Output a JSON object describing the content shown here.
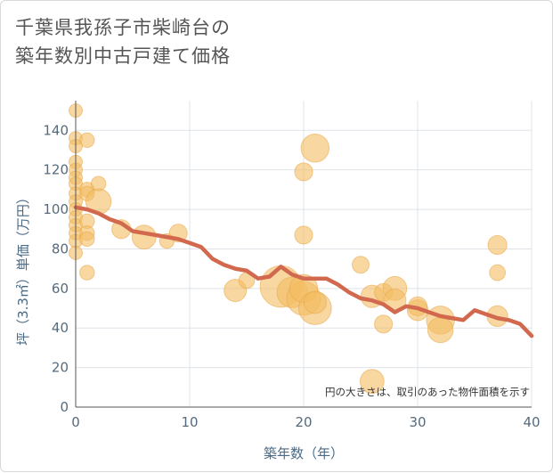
{
  "chart_data": {
    "type": "scatter",
    "title_lines": [
      "千葉県我孫子市柴崎台の",
      "築年数別中古戸建て価格"
    ],
    "xlabel": "築年数（年）",
    "ylabel": "坪（3.3㎡）単価（万円）",
    "xlim": [
      0,
      40
    ],
    "ylim": [
      0,
      155
    ],
    "xticks": [
      "0",
      "10",
      "20",
      "30",
      "40"
    ],
    "yticks": [
      "0",
      "20",
      "40",
      "60",
      "80",
      "100",
      "120",
      "140"
    ],
    "note": "円の大きさは、取引のあった物件面積を示す",
    "grid": true,
    "colors": {
      "bubble": "#f3bd63",
      "line": "#d2694f"
    },
    "bubbles": [
      {
        "x": 0,
        "y": 150,
        "size": 0.25
      },
      {
        "x": 0,
        "y": 136,
        "size": 0.25
      },
      {
        "x": 0,
        "y": 132,
        "size": 0.25
      },
      {
        "x": 0,
        "y": 124,
        "size": 0.25
      },
      {
        "x": 0,
        "y": 120,
        "size": 0.25
      },
      {
        "x": 0,
        "y": 116,
        "size": 0.25
      },
      {
        "x": 0,
        "y": 113,
        "size": 0.25
      },
      {
        "x": 0,
        "y": 108,
        "size": 0.25
      },
      {
        "x": 0,
        "y": 104,
        "size": 0.25
      },
      {
        "x": 0,
        "y": 100,
        "size": 0.25
      },
      {
        "x": 0,
        "y": 96,
        "size": 0.25
      },
      {
        "x": 0,
        "y": 92,
        "size": 0.25
      },
      {
        "x": 0,
        "y": 88,
        "size": 0.25
      },
      {
        "x": 0,
        "y": 84,
        "size": 0.25
      },
      {
        "x": 0,
        "y": 78,
        "size": 0.25
      },
      {
        "x": 1,
        "y": 135,
        "size": 0.3
      },
      {
        "x": 1,
        "y": 110,
        "size": 0.3
      },
      {
        "x": 1,
        "y": 108,
        "size": 0.3
      },
      {
        "x": 1,
        "y": 94,
        "size": 0.3
      },
      {
        "x": 1,
        "y": 88,
        "size": 0.3
      },
      {
        "x": 1,
        "y": 85,
        "size": 0.3
      },
      {
        "x": 1,
        "y": 68,
        "size": 0.3
      },
      {
        "x": 2,
        "y": 113,
        "size": 0.3
      },
      {
        "x": 2,
        "y": 104,
        "size": 0.9
      },
      {
        "x": 4,
        "y": 90,
        "size": 0.5
      },
      {
        "x": 6,
        "y": 86,
        "size": 0.8
      },
      {
        "x": 8,
        "y": 84,
        "size": 0.3
      },
      {
        "x": 9,
        "y": 88,
        "size": 0.45
      },
      {
        "x": 14,
        "y": 59,
        "size": 0.7
      },
      {
        "x": 15,
        "y": 64,
        "size": 0.35
      },
      {
        "x": 18,
        "y": 61,
        "size": 2.4
      },
      {
        "x": 19,
        "y": 58,
        "size": 1.3
      },
      {
        "x": 20,
        "y": 119,
        "size": 0.45
      },
      {
        "x": 20,
        "y": 87,
        "size": 0.45
      },
      {
        "x": 20,
        "y": 55,
        "size": 1.6
      },
      {
        "x": 20,
        "y": 60,
        "size": 1.1
      },
      {
        "x": 21,
        "y": 131,
        "size": 1.1
      },
      {
        "x": 21,
        "y": 50,
        "size": 1.5
      },
      {
        "x": 21,
        "y": 53,
        "size": 0.7
      },
      {
        "x": 25,
        "y": 72,
        "size": 0.4
      },
      {
        "x": 26,
        "y": 56,
        "size": 0.7
      },
      {
        "x": 26,
        "y": 13,
        "size": 0.8
      },
      {
        "x": 27,
        "y": 58,
        "size": 0.45
      },
      {
        "x": 27,
        "y": 42,
        "size": 0.45
      },
      {
        "x": 28,
        "y": 60,
        "size": 0.8
      },
      {
        "x": 28,
        "y": 54,
        "size": 0.7
      },
      {
        "x": 30,
        "y": 49,
        "size": 0.6
      },
      {
        "x": 30,
        "y": 51,
        "size": 0.5
      },
      {
        "x": 32,
        "y": 44,
        "size": 1.1
      },
      {
        "x": 32,
        "y": 39,
        "size": 0.9
      },
      {
        "x": 37,
        "y": 82,
        "size": 0.5
      },
      {
        "x": 37,
        "y": 68,
        "size": 0.35
      },
      {
        "x": 37,
        "y": 46,
        "size": 0.6
      }
    ],
    "line": [
      {
        "x": 0,
        "y": 101
      },
      {
        "x": 1,
        "y": 100
      },
      {
        "x": 2,
        "y": 98
      },
      {
        "x": 3,
        "y": 95
      },
      {
        "x": 4,
        "y": 93
      },
      {
        "x": 5,
        "y": 89
      },
      {
        "x": 6,
        "y": 88
      },
      {
        "x": 7,
        "y": 87
      },
      {
        "x": 8,
        "y": 86
      },
      {
        "x": 9,
        "y": 85
      },
      {
        "x": 10,
        "y": 83
      },
      {
        "x": 11,
        "y": 81
      },
      {
        "x": 12,
        "y": 75
      },
      {
        "x": 13,
        "y": 72
      },
      {
        "x": 14,
        "y": 70
      },
      {
        "x": 15,
        "y": 69
      },
      {
        "x": 16,
        "y": 65
      },
      {
        "x": 17,
        "y": 66
      },
      {
        "x": 18,
        "y": 71
      },
      {
        "x": 19,
        "y": 67
      },
      {
        "x": 20,
        "y": 65
      },
      {
        "x": 21,
        "y": 65
      },
      {
        "x": 22,
        "y": 65
      },
      {
        "x": 23,
        "y": 62
      },
      {
        "x": 24,
        "y": 58
      },
      {
        "x": 25,
        "y": 55
      },
      {
        "x": 26,
        "y": 54
      },
      {
        "x": 27,
        "y": 52
      },
      {
        "x": 28,
        "y": 48
      },
      {
        "x": 29,
        "y": 51
      },
      {
        "x": 30,
        "y": 50
      },
      {
        "x": 31,
        "y": 48
      },
      {
        "x": 32,
        "y": 46
      },
      {
        "x": 33,
        "y": 45
      },
      {
        "x": 34,
        "y": 44
      },
      {
        "x": 35,
        "y": 49
      },
      {
        "x": 36,
        "y": 47
      },
      {
        "x": 37,
        "y": 45
      },
      {
        "x": 38,
        "y": 44
      },
      {
        "x": 39,
        "y": 42
      },
      {
        "x": 40,
        "y": 36
      }
    ]
  }
}
